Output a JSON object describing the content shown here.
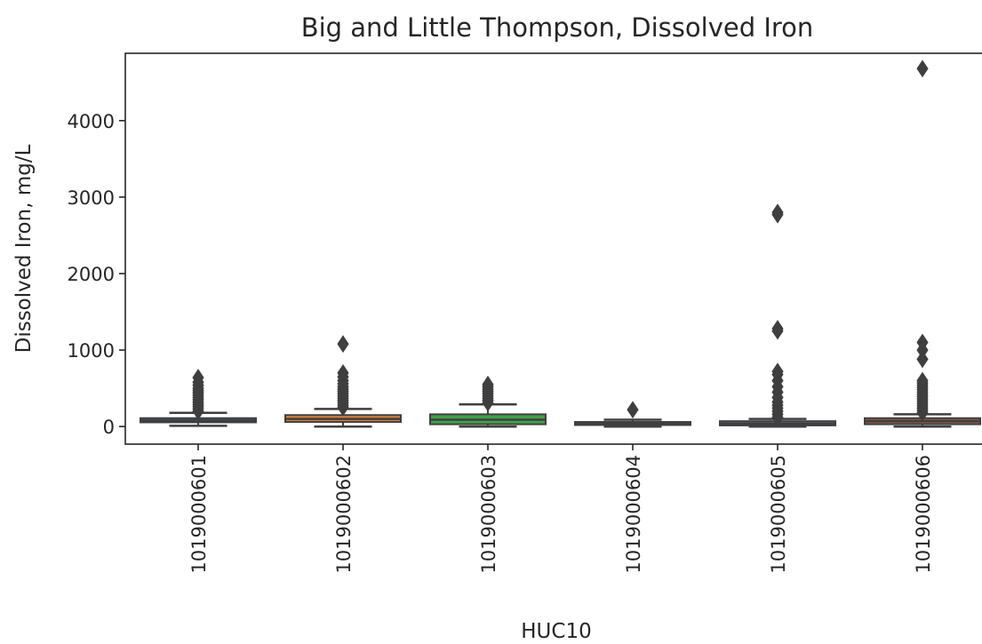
{
  "chart_data": {
    "type": "box",
    "title": "Big and Little Thompson, Dissolved Iron",
    "xlabel": "HUC10",
    "ylabel": "Dissolved Iron, mg/L",
    "ylim": [
      -230,
      4880
    ],
    "yticks": [
      0,
      1000,
      2000,
      3000,
      4000
    ],
    "ytick_labels": [
      "0",
      "1000",
      "2000",
      "3000",
      "4000"
    ],
    "grid": false,
    "legend": "none",
    "categories": [
      "1019000601",
      "1019000602",
      "1019000603",
      "1019000604",
      "1019000605",
      "1019000606"
    ],
    "boxes": [
      {
        "category": "1019000601",
        "color": "#3b6ea5",
        "whisker_low": 10,
        "q1": 55,
        "median": 80,
        "q3": 110,
        "whisker_high": 180,
        "outliers": [
          200,
          230,
          260,
          290,
          320,
          350,
          380,
          410,
          440,
          470,
          500,
          540,
          580,
          640
        ]
      },
      {
        "category": "1019000602",
        "color": "#d9843b",
        "whisker_low": 0,
        "q1": 60,
        "median": 100,
        "q3": 150,
        "whisker_high": 230,
        "outliers": [
          250,
          280,
          310,
          340,
          370,
          400,
          430,
          460,
          490,
          520,
          560,
          600,
          650,
          700,
          1080
        ]
      },
      {
        "category": "1019000603",
        "color": "#44a04b",
        "whisker_low": 0,
        "q1": 30,
        "median": 90,
        "q3": 160,
        "whisker_high": 290,
        "outliers": [
          310,
          340,
          370,
          400,
          430,
          460,
          490,
          520,
          550
        ]
      },
      {
        "category": "1019000604",
        "color": "#c4473a",
        "whisker_low": 0,
        "q1": 20,
        "median": 40,
        "q3": 60,
        "whisker_high": 90,
        "outliers": [
          220
        ]
      },
      {
        "category": "1019000605",
        "color": "#8a6bb4",
        "whisker_low": 0,
        "q1": 15,
        "median": 40,
        "q3": 70,
        "whisker_high": 100,
        "outliers": [
          120,
          160,
          200,
          240,
          280,
          320,
          380,
          450,
          520,
          600,
          680,
          720,
          1250,
          1280,
          2770,
          2800
        ]
      },
      {
        "category": "1019000606",
        "color": "#8c5a4a",
        "whisker_low": 0,
        "q1": 30,
        "median": 70,
        "q3": 110,
        "whisker_high": 160,
        "outliers": [
          180,
          210,
          240,
          270,
          300,
          330,
          360,
          390,
          420,
          450,
          480,
          510,
          540,
          570,
          600,
          880,
          1000,
          1100,
          4680
        ]
      }
    ]
  }
}
